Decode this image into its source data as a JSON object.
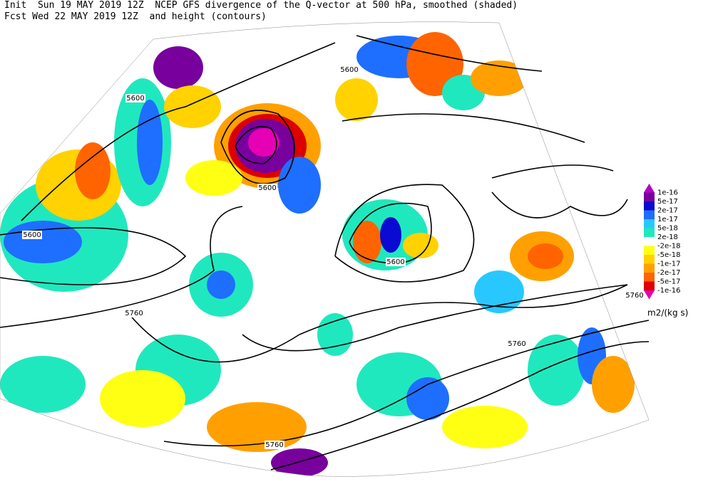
{
  "header": {
    "line1": "Init  Sun 19 MAY 2019 12Z  NCEP GFS divergence of the Q-vector at 500 hPa, smoothed (shaded)",
    "line2": "Fcst Wed 22 MAY 2019 12Z  and height (contours)"
  },
  "contour_labels": [
    "5600",
    "5600",
    "5600",
    "5600",
    "5600",
    "5760",
    "5760",
    "5760",
    "5760"
  ],
  "colorbar": {
    "unit": "m2/(kg s)",
    "labels": [
      "1e-16",
      "5e-17",
      "2e-17",
      "1e-17",
      "5e-18",
      "2e-18",
      "-2e-18",
      "-5e-18",
      "-1e-17",
      "-2e-17",
      "-5e-17",
      "-1e-16"
    ],
    "colors": [
      "#b400c8",
      "#78009c",
      "#0a0ad2",
      "#1e6eff",
      "#28c8ff",
      "#20e8be",
      "#ffffff",
      "#ffff14",
      "#ffd200",
      "#ffa000",
      "#ff6400",
      "#dc0000",
      "#e600b4"
    ]
  }
}
